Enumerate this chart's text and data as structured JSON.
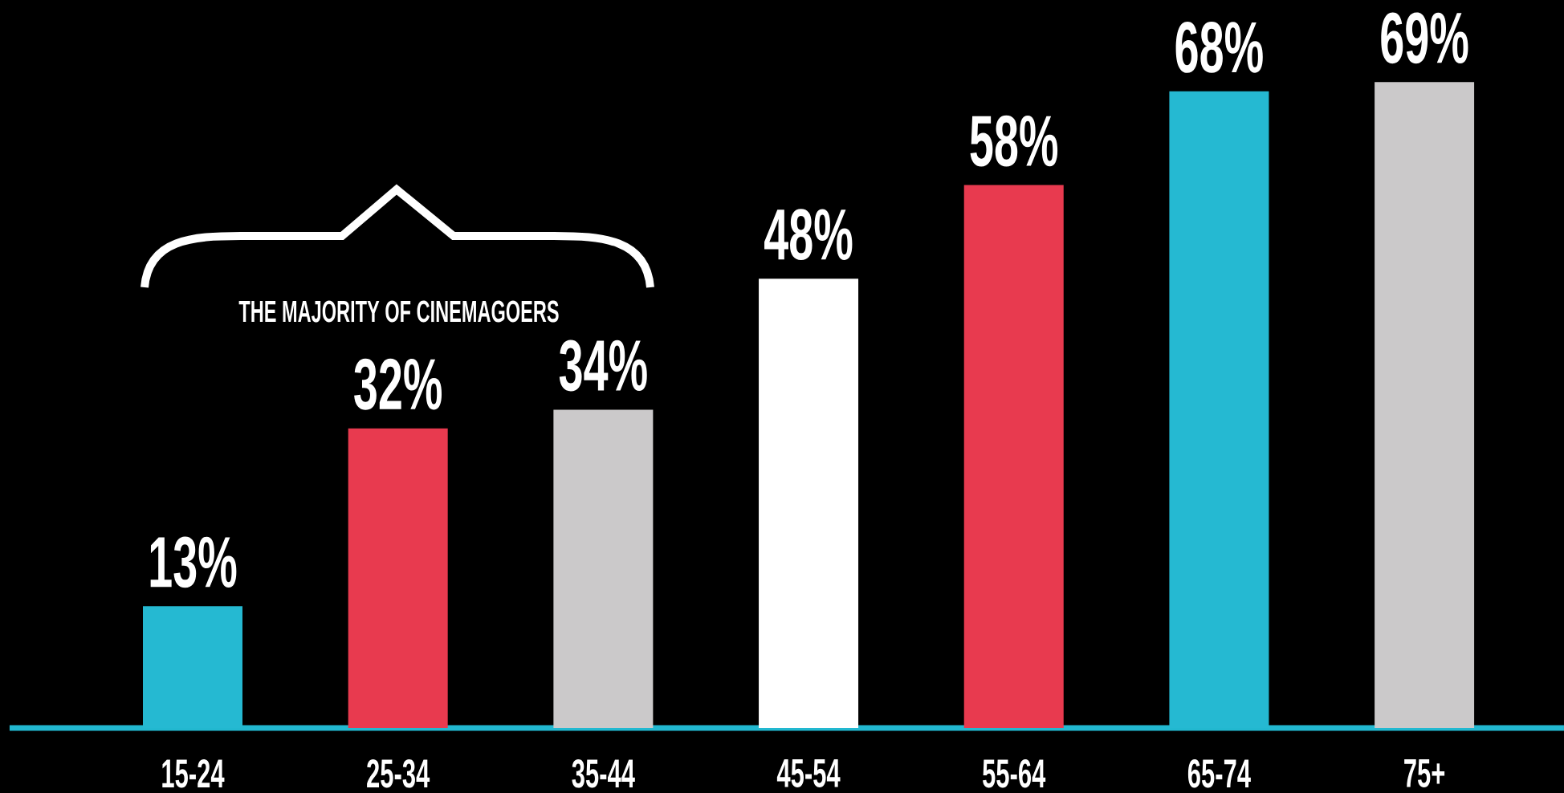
{
  "chart_data": {
    "type": "bar",
    "categories": [
      "15-24",
      "25-34",
      "35-44",
      "45-54",
      "55-64",
      "65-74",
      "75+"
    ],
    "values": [
      13,
      32,
      34,
      48,
      58,
      68,
      69
    ],
    "value_labels": [
      "13%",
      "32%",
      "34%",
      "48%",
      "58%",
      "68%",
      "69%"
    ],
    "colors": [
      "#25b9d2",
      "#e83a4f",
      "#cbc9ca",
      "#ffffff",
      "#e83a4f",
      "#25b9d2",
      "#cbc9ca"
    ],
    "annotations": [
      "THE MAJORITY OF CINEMAGOERS"
    ]
  }
}
